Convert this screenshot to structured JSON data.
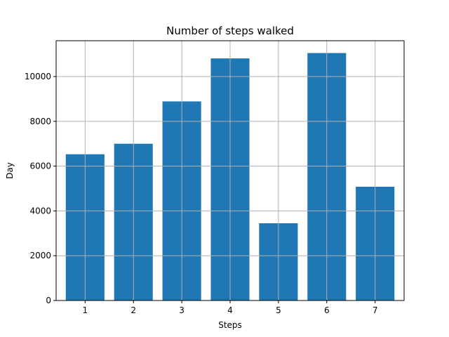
{
  "chart_data": {
    "type": "bar",
    "title": "Number of steps walked",
    "xlabel": "Steps",
    "ylabel": "Day",
    "categories": [
      "1",
      "2",
      "3",
      "4",
      "5",
      "6",
      "7"
    ],
    "values": [
      6530,
      7000,
      8890,
      10810,
      3450,
      11050,
      5080
    ],
    "ylim": [
      0,
      11600
    ],
    "yticks": [
      0,
      2000,
      4000,
      6000,
      8000,
      10000
    ],
    "ytick_labels": [
      "0",
      "2000",
      "4000",
      "6000",
      "8000",
      "10000"
    ],
    "grid": true,
    "bar_color": "#1f77b4",
    "grid_color": "#b0b0b0"
  }
}
